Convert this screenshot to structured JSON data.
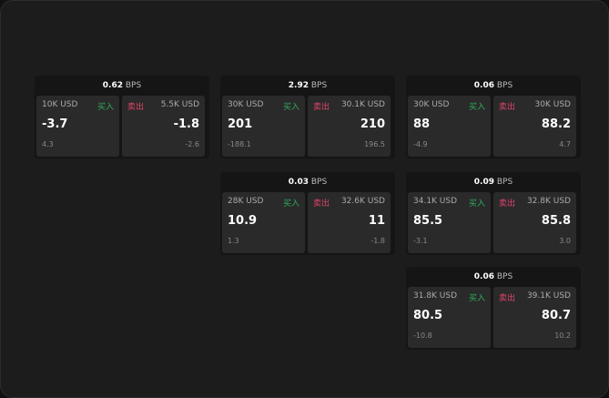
{
  "bps_unit": "BPS",
  "buy_label": "买入",
  "sell_label": "卖出",
  "cards": [
    {
      "bps": "0.62",
      "bid_size": "10K USD",
      "bid": "-3.7",
      "bid_chg": "4.3",
      "ask_size": "5.5K USD",
      "ask": "-1.8",
      "ask_chg": "-2.6"
    },
    {
      "bps": "2.92",
      "bid_size": "30K USD",
      "bid": "201",
      "bid_chg": "-188.1",
      "ask_size": "30.1K USD",
      "ask": "210",
      "ask_chg": "196.5"
    },
    {
      "bps": "0.06",
      "bid_size": "30K USD",
      "bid": "88",
      "bid_chg": "-4.9",
      "ask_size": "30K USD",
      "ask": "88.2",
      "ask_chg": "4.7"
    },
    {
      "bps": "0.03",
      "bid_size": "28K USD",
      "bid": "10.9",
      "bid_chg": "1.3",
      "ask_size": "32.6K USD",
      "ask": "11",
      "ask_chg": "-1.8"
    },
    {
      "bps": "0.09",
      "bid_size": "34.1K USD",
      "bid": "85.5",
      "bid_chg": "-3.1",
      "ask_size": "32.8K USD",
      "ask": "85.8",
      "ask_chg": "3.0"
    },
    {
      "bps": "0.06",
      "bid_size": "31.8K USD",
      "bid": "80.5",
      "bid_chg": "-10.8",
      "ask_size": "39.1K USD",
      "ask": "80.7",
      "ask_chg": "10.2"
    }
  ]
}
